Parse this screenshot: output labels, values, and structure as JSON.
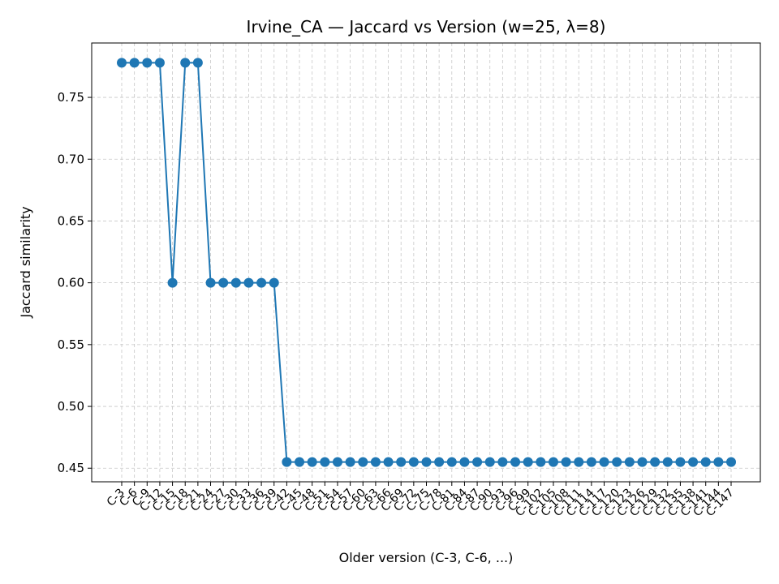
{
  "chart_data": {
    "type": "line",
    "title": "Irvine_CA — Jaccard vs Version (w=25, λ=8)",
    "xlabel": "Older version (C-3, C-6, ...)",
    "ylabel": "Jaccard similarity",
    "ylim": [
      0.439,
      0.794
    ],
    "yticks": [
      0.45,
      0.5,
      0.55,
      0.6,
      0.65,
      0.7,
      0.75
    ],
    "ytick_labels": [
      "0.45",
      "0.50",
      "0.55",
      "0.60",
      "0.65",
      "0.70",
      "0.75"
    ],
    "grid": true,
    "categories": [
      "C-3",
      "C-6",
      "C-9",
      "C-12",
      "C-15",
      "C-18",
      "C-21",
      "C-24",
      "C-27",
      "C-30",
      "C-33",
      "C-36",
      "C-39",
      "C-42",
      "C-45",
      "C-48",
      "C-51",
      "C-54",
      "C-57",
      "C-60",
      "C-63",
      "C-66",
      "C-69",
      "C-72",
      "C-75",
      "C-78",
      "C-81",
      "C-84",
      "C-87",
      "C-90",
      "C-93",
      "C-96",
      "C-99",
      "C-102",
      "C-105",
      "C-108",
      "C-111",
      "C-114",
      "C-117",
      "C-120",
      "C-123",
      "C-126",
      "C-129",
      "C-132",
      "C-135",
      "C-138",
      "C-141",
      "C-144",
      "C-147"
    ],
    "series": [
      {
        "color": "#1f77b4",
        "values": [
          0.778,
          0.778,
          0.778,
          0.778,
          0.6,
          0.778,
          0.778,
          0.6,
          0.6,
          0.6,
          0.6,
          0.6,
          0.6,
          0.455,
          0.455,
          0.455,
          0.455,
          0.455,
          0.455,
          0.455,
          0.455,
          0.455,
          0.455,
          0.455,
          0.455,
          0.455,
          0.455,
          0.455,
          0.455,
          0.455,
          0.455,
          0.455,
          0.455,
          0.455,
          0.455,
          0.455,
          0.455,
          0.455,
          0.455,
          0.455,
          0.455,
          0.455,
          0.455,
          0.455,
          0.455,
          0.455,
          0.455,
          0.455,
          0.455
        ]
      }
    ]
  }
}
